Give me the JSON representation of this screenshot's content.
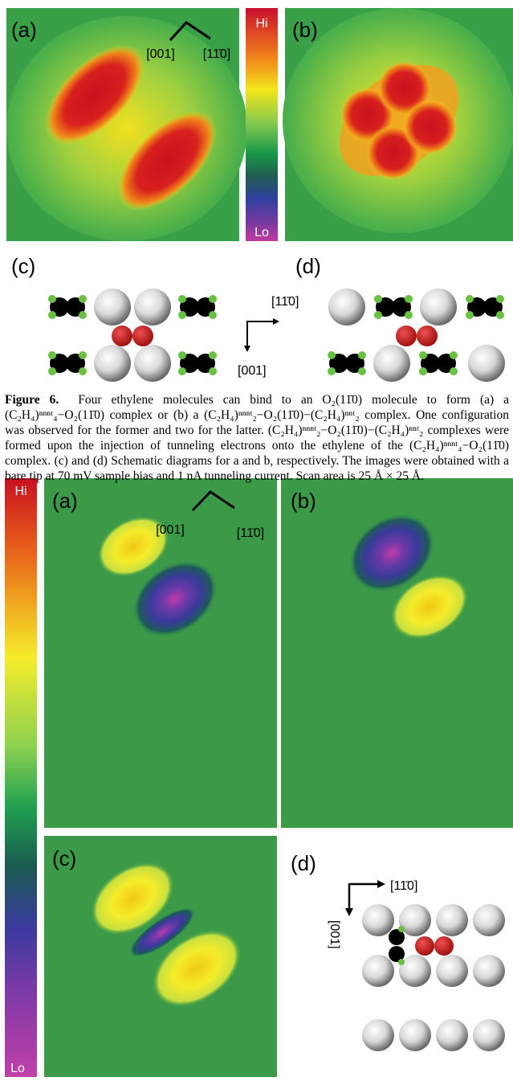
{
  "top_figure": {
    "panel_labels": [
      "(a)",
      "(b)",
      "(c)",
      "(d)"
    ],
    "colorbar": {
      "hi": "Hi",
      "lo": "Lo"
    },
    "image_axes": {
      "first": "[001]",
      "second": "[11̄0]"
    },
    "schematic_axes": {
      "horizontal": "[11̄0]",
      "vertical": "[001]"
    }
  },
  "caption": {
    "label": "Figure 6.",
    "text": "Four ethylene molecules can bind to an O₂(11̄0) molecule to form (a) a (C₂H₄)ⁿⁿⁿᵗ₄−O₂(11̄0) complex or (b) a (C₂H₄)ⁿⁿⁿᵗ₂−O₂(11̄0)−(C₂H₄)ⁿⁿᵗ₂ complex. One configuration was observed for the former and two for the latter. (C₂H₄)ⁿⁿⁿᵗ₂−O₂(11̄0)−(C₂H₄)ⁿⁿᵗ₂ complexes were formed upon the injection of tunneling electrons onto the ethylene of the (C₂H₄)ⁿⁿⁿᵗ₄−O₂(11̄0) complex. (c) and (d) Schematic diagrams for a and b, respectively. The images were obtained with a bare tip at 70 mV sample bias and 1 nA tunneling current. Scan area is 25 Å × 25 Å."
  },
  "bottom_figure": {
    "panel_labels": [
      "(a)",
      "(b)",
      "(c)",
      "(d)"
    ],
    "colorbar": {
      "hi": "Hi",
      "lo": "Lo"
    },
    "image_axes": {
      "first": "[001]",
      "second": "[11̄0]"
    },
    "schematic_axes": {
      "horizontal": "[11̄0]",
      "vertical": "[001]"
    }
  }
}
